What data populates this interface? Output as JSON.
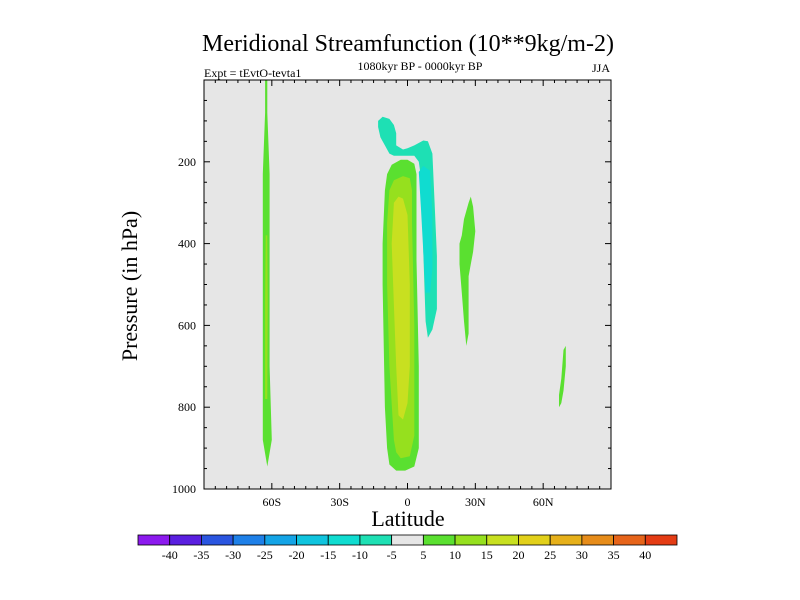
{
  "chart_data": {
    "type": "heatmap",
    "title": "Meridional Streamfunction (10**9kg/m-2)",
    "subtitle_left": "Expt = tEvtO-tevta1",
    "subtitle_center": "1080kyr BP - 0000kyr BP",
    "subtitle_right": "JJA",
    "xlabel": "Latitude",
    "ylabel": "Pressure (in hPa)",
    "xlim": [
      -90,
      90
    ],
    "ylim": [
      1000,
      0
    ],
    "x_ticks": [
      {
        "value": -60,
        "label": "60S"
      },
      {
        "value": -30,
        "label": "30S"
      },
      {
        "value": 0,
        "label": "0"
      },
      {
        "value": 30,
        "label": "30N"
      },
      {
        "value": 60,
        "label": "60N"
      }
    ],
    "y_ticks": [
      {
        "value": 200,
        "label": "200"
      },
      {
        "value": 400,
        "label": "400"
      },
      {
        "value": 600,
        "label": "600"
      },
      {
        "value": 800,
        "label": "800"
      },
      {
        "value": 1000,
        "label": "1000"
      }
    ],
    "background_color": "#e6e6e6",
    "levels": [
      -40,
      -35,
      -30,
      -25,
      -20,
      -15,
      -10,
      -5,
      5,
      10,
      15,
      20,
      25,
      30,
      35,
      40
    ],
    "colorbar_colors": [
      "#8c1aee",
      "#5a1fe0",
      "#2a55e0",
      "#1e80e8",
      "#14a4e6",
      "#10c4de",
      "#10dcd0",
      "#1ee0b4",
      "#e6e6e6",
      "#5ae030",
      "#96e01e",
      "#c8e020",
      "#e2d01a",
      "#e6b01a",
      "#e68c1a",
      "#e6641a",
      "#e43c14"
    ],
    "regions": [
      {
        "name": "band-60s-plus5",
        "value": 5,
        "color": "#5ae030",
        "points": [
          [
            -63,
            0
          ],
          [
            -62,
            0
          ],
          [
            -62,
            80
          ],
          [
            -61,
            230
          ],
          [
            -61,
            430
          ],
          [
            -61,
            700
          ],
          [
            -60,
            880
          ],
          [
            -62,
            945
          ],
          [
            -64,
            880
          ],
          [
            -64,
            700
          ],
          [
            -64,
            430
          ],
          [
            -64,
            230
          ],
          [
            -63,
            80
          ]
        ]
      },
      {
        "name": "band-60s-plus10",
        "value": 10,
        "color": "#96e01e",
        "points": [
          [
            -62.7,
            380
          ],
          [
            -62,
            380
          ],
          [
            -61.8,
            540
          ],
          [
            -62,
            780
          ],
          [
            -63,
            780
          ],
          [
            -63,
            540
          ]
        ]
      },
      {
        "name": "upper-trop-minus5",
        "value": -5,
        "color": "#1ee0b4",
        "points": [
          [
            -13,
            100
          ],
          [
            -11,
            90
          ],
          [
            -8,
            95
          ],
          [
            -6,
            110
          ],
          [
            -5,
            130
          ],
          [
            -5,
            160
          ],
          [
            -2,
            170
          ],
          [
            0,
            167
          ],
          [
            3,
            160
          ],
          [
            7,
            148
          ],
          [
            9,
            150
          ],
          [
            11,
            180
          ],
          [
            12,
            300
          ],
          [
            13,
            430
          ],
          [
            13,
            560
          ],
          [
            11,
            610
          ],
          [
            9,
            630
          ],
          [
            8,
            590
          ],
          [
            7,
            420
          ],
          [
            7,
            280
          ],
          [
            5,
            200
          ],
          [
            3,
            185
          ],
          [
            0,
            185
          ],
          [
            -3,
            185
          ],
          [
            -6,
            185
          ],
          [
            -8,
            180
          ],
          [
            -10,
            160
          ],
          [
            -12,
            140
          ],
          [
            -13,
            115
          ]
        ]
      },
      {
        "name": "core-minus10",
        "value": -10,
        "color": "#10dcd0",
        "points": [
          [
            5,
            225
          ],
          [
            7,
            210
          ],
          [
            10,
            222
          ],
          [
            11,
            330
          ],
          [
            11,
            460
          ],
          [
            10,
            520
          ],
          [
            8,
            520
          ],
          [
            7,
            420
          ],
          [
            6,
            320
          ]
        ]
      },
      {
        "name": "equator-plus5",
        "value": 5,
        "color": "#5ae030",
        "points": [
          [
            -9,
            230
          ],
          [
            -7,
            207
          ],
          [
            -3,
            195
          ],
          [
            0,
            195
          ],
          [
            3,
            205
          ],
          [
            4,
            230
          ],
          [
            4,
            440
          ],
          [
            5,
            700
          ],
          [
            5,
            900
          ],
          [
            3,
            945
          ],
          [
            -1,
            955
          ],
          [
            -5,
            955
          ],
          [
            -8,
            940
          ],
          [
            -9,
            900
          ],
          [
            -10,
            800
          ],
          [
            -11,
            500
          ],
          [
            -11,
            400
          ],
          [
            -10,
            270
          ]
        ]
      },
      {
        "name": "equator-plus10",
        "value": 10,
        "color": "#96e01e",
        "points": [
          [
            -8,
            270
          ],
          [
            -6,
            245
          ],
          [
            -2,
            235
          ],
          [
            1,
            240
          ],
          [
            2,
            270
          ],
          [
            2,
            350
          ],
          [
            3,
            600
          ],
          [
            3,
            870
          ],
          [
            1,
            920
          ],
          [
            -3,
            925
          ],
          [
            -5,
            910
          ],
          [
            -6,
            880
          ],
          [
            -8,
            700
          ],
          [
            -9,
            500
          ],
          [
            -9,
            350
          ]
        ]
      },
      {
        "name": "equator-plus15",
        "value": 15,
        "color": "#c8e020",
        "points": [
          [
            -6,
            300
          ],
          [
            -4,
            285
          ],
          [
            -2,
            290
          ],
          [
            0,
            330
          ],
          [
            1,
            500
          ],
          [
            1,
            700
          ],
          [
            0,
            790
          ],
          [
            -2,
            830
          ],
          [
            -4,
            820
          ],
          [
            -5,
            700
          ],
          [
            -6,
            550
          ],
          [
            -7,
            400
          ]
        ]
      },
      {
        "name": "nh-subtropics-plus5",
        "value": 5,
        "color": "#5ae030",
        "points": [
          [
            24,
            380
          ],
          [
            25,
            340
          ],
          [
            27,
            300
          ],
          [
            28,
            285
          ],
          [
            29,
            310
          ],
          [
            30,
            370
          ],
          [
            29,
            420
          ],
          [
            28,
            450
          ],
          [
            27,
            480
          ],
          [
            27,
            560
          ],
          [
            27,
            620
          ],
          [
            26,
            650
          ],
          [
            25,
            590
          ],
          [
            24,
            520
          ],
          [
            23,
            450
          ],
          [
            23,
            400
          ]
        ]
      },
      {
        "name": "nh-60n-plus5",
        "value": 5,
        "color": "#5ae030",
        "points": [
          [
            68,
            730
          ],
          [
            69,
            660
          ],
          [
            70,
            650
          ],
          [
            70,
            700
          ],
          [
            69,
            760
          ],
          [
            68,
            790
          ],
          [
            67,
            800
          ],
          [
            67,
            770
          ]
        ]
      }
    ]
  }
}
